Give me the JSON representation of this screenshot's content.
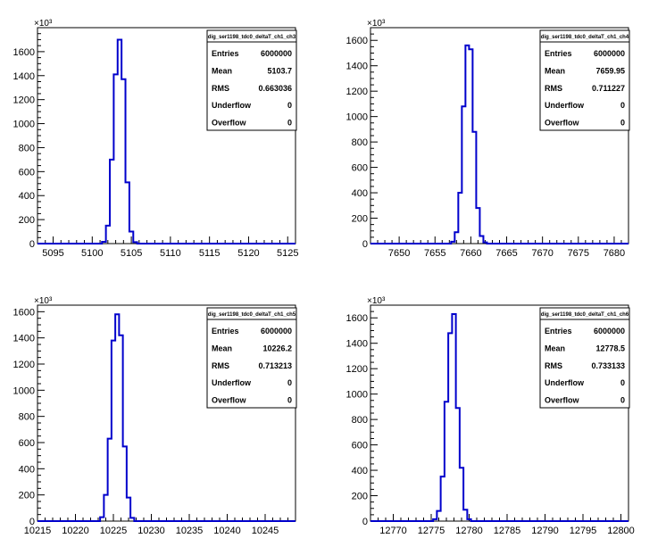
{
  "colors": {
    "histogram_line": "#0000cc",
    "axis": "#000000",
    "background": "#ffffff"
  },
  "chart_data": [
    {
      "type": "histogram",
      "title": "dig_ser1198_tdc0_deltaT_ch1_ch3",
      "xlim": [
        5093,
        5126
      ],
      "ylim": [
        0,
        1800
      ],
      "y_exponent_label": "×10³",
      "x_ticks": [
        5095,
        5100,
        5105,
        5110,
        5115,
        5120,
        5125
      ],
      "y_ticks": [
        0,
        200,
        400,
        600,
        800,
        1000,
        1200,
        1400,
        1600
      ],
      "bin_width": 0.5,
      "bins": [
        {
          "x": 5101.5,
          "y": 15
        },
        {
          "x": 5102.0,
          "y": 150
        },
        {
          "x": 5102.5,
          "y": 700
        },
        {
          "x": 5103.0,
          "y": 1410
        },
        {
          "x": 5103.5,
          "y": 1700
        },
        {
          "x": 5104.0,
          "y": 1370
        },
        {
          "x": 5104.5,
          "y": 510
        },
        {
          "x": 5105.0,
          "y": 100
        },
        {
          "x": 5105.5,
          "y": 12
        }
      ],
      "stats": [
        {
          "label": "Entries",
          "value": "6000000"
        },
        {
          "label": "Mean",
          "value": "5103.7"
        },
        {
          "label": "RMS",
          "value": "0.663036"
        },
        {
          "label": "Underflow",
          "value": "0"
        },
        {
          "label": "Overflow",
          "value": "0"
        }
      ]
    },
    {
      "type": "histogram",
      "title": "dig_ser1198_tdc0_deltaT_ch1_ch4",
      "xlim": [
        7646,
        7682
      ],
      "ylim": [
        0,
        1700
      ],
      "y_exponent_label": "×10³",
      "x_ticks": [
        7650,
        7655,
        7660,
        7665,
        7670,
        7675,
        7680
      ],
      "y_ticks": [
        0,
        200,
        400,
        600,
        800,
        1000,
        1200,
        1400,
        1600
      ],
      "bin_width": 0.5,
      "bins": [
        {
          "x": 7657.5,
          "y": 15
        },
        {
          "x": 7658.0,
          "y": 90
        },
        {
          "x": 7658.5,
          "y": 400
        },
        {
          "x": 7659.0,
          "y": 1080
        },
        {
          "x": 7659.5,
          "y": 1560
        },
        {
          "x": 7660.0,
          "y": 1530
        },
        {
          "x": 7660.5,
          "y": 880
        },
        {
          "x": 7661.0,
          "y": 280
        },
        {
          "x": 7661.5,
          "y": 60
        },
        {
          "x": 7662.0,
          "y": 10
        }
      ],
      "stats": [
        {
          "label": "Entries",
          "value": "6000000"
        },
        {
          "label": "Mean",
          "value": "7659.95"
        },
        {
          "label": "RMS",
          "value": "0.711227"
        },
        {
          "label": "Underflow",
          "value": "0"
        },
        {
          "label": "Overflow",
          "value": "0"
        }
      ]
    },
    {
      "type": "histogram",
      "title": "dig_ser1198_tdc0_deltaT_ch1_ch5",
      "xlim": [
        10215,
        10249
      ],
      "ylim": [
        0,
        1650
      ],
      "y_exponent_label": "×10³",
      "x_ticks": [
        10215,
        10220,
        10225,
        10230,
        10235,
        10240,
        10245
      ],
      "y_ticks": [
        0,
        200,
        400,
        600,
        800,
        1000,
        1200,
        1400,
        1600
      ],
      "bin_width": 0.5,
      "bins": [
        {
          "x": 10223.5,
          "y": 30
        },
        {
          "x": 10224.0,
          "y": 200
        },
        {
          "x": 10224.5,
          "y": 630
        },
        {
          "x": 10225.0,
          "y": 1380
        },
        {
          "x": 10225.5,
          "y": 1580
        },
        {
          "x": 10226.0,
          "y": 1420
        },
        {
          "x": 10226.5,
          "y": 570
        },
        {
          "x": 10227.0,
          "y": 180
        },
        {
          "x": 10227.5,
          "y": 25
        }
      ],
      "stats": [
        {
          "label": "Entries",
          "value": "6000000"
        },
        {
          "label": "Mean",
          "value": "10226.2"
        },
        {
          "label": "RMS",
          "value": "0.713213"
        },
        {
          "label": "Underflow",
          "value": "0"
        },
        {
          "label": "Overflow",
          "value": "0"
        }
      ]
    },
    {
      "type": "histogram",
      "title": "dig_ser1198_tdc0_deltaT_ch1_ch6",
      "xlim": [
        12767,
        12801
      ],
      "ylim": [
        0,
        1700
      ],
      "y_exponent_label": "×10³",
      "x_ticks": [
        12770,
        12775,
        12780,
        12785,
        12790,
        12795,
        12800
      ],
      "y_ticks": [
        0,
        200,
        400,
        600,
        800,
        1000,
        1200,
        1400,
        1600
      ],
      "bin_width": 0.5,
      "bins": [
        {
          "x": 12775.5,
          "y": 15
        },
        {
          "x": 12776.0,
          "y": 80
        },
        {
          "x": 12776.5,
          "y": 350
        },
        {
          "x": 12777.0,
          "y": 940
        },
        {
          "x": 12777.5,
          "y": 1480
        },
        {
          "x": 12778.0,
          "y": 1630
        },
        {
          "x": 12778.5,
          "y": 890
        },
        {
          "x": 12779.0,
          "y": 420
        },
        {
          "x": 12779.5,
          "y": 90
        },
        {
          "x": 12780.0,
          "y": 15
        }
      ],
      "stats": [
        {
          "label": "Entries",
          "value": "6000000"
        },
        {
          "label": "Mean",
          "value": "12778.5"
        },
        {
          "label": "RMS",
          "value": "0.733133"
        },
        {
          "label": "Underflow",
          "value": "0"
        },
        {
          "label": "Overflow",
          "value": "0"
        }
      ]
    }
  ]
}
